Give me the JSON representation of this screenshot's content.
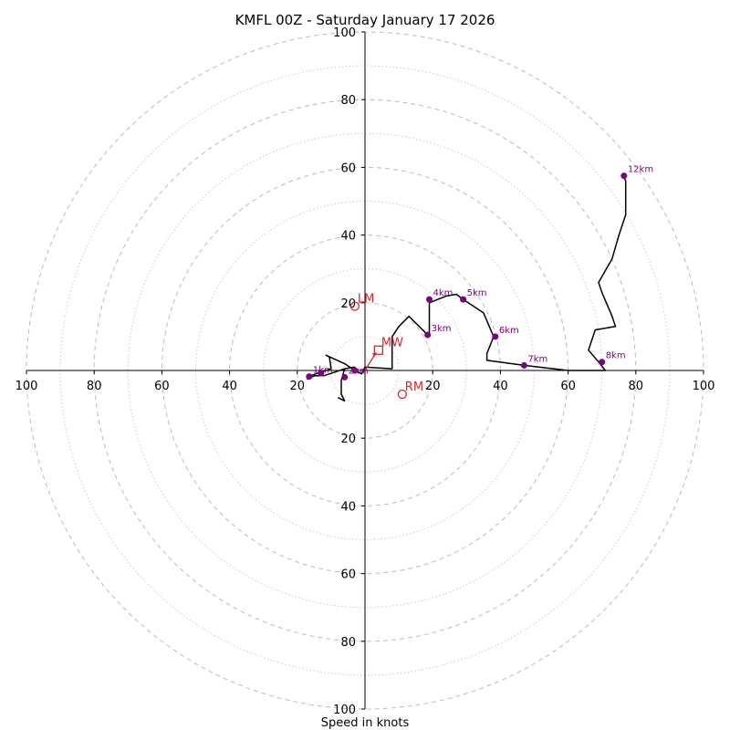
{
  "chart_data": {
    "type": "hodograph",
    "title": "KMFL 00Z - Saturday January 17 2026",
    "xlabel": "Speed in knots",
    "axis_range": [
      -100,
      100
    ],
    "ring_radii_major": [
      20,
      40,
      60,
      80,
      100
    ],
    "ring_radii_minor": [
      10,
      30,
      50,
      70,
      90
    ],
    "tick_values": [
      20,
      40,
      60,
      80,
      100
    ],
    "tick_labels": {
      "x_left": [
        "100",
        "80",
        "60",
        "40",
        "20"
      ],
      "x_right": [
        "20",
        "40",
        "60",
        "80",
        "100"
      ],
      "y_up": [
        "20",
        "40",
        "60",
        "80",
        "100"
      ],
      "y_down": [
        "20",
        "40",
        "60",
        "80",
        "100"
      ]
    },
    "hodograph_trace": [
      [
        -3,
        1
      ],
      [
        -6,
        0.5
      ],
      [
        -9,
        -0.5
      ],
      [
        -12,
        -1.5
      ],
      [
        -15,
        -1.6
      ],
      [
        -17,
        -2.5
      ],
      [
        -16,
        -1.5
      ],
      [
        -13,
        -0.5
      ],
      [
        -10,
        0.5
      ],
      [
        -10.5,
        4
      ],
      [
        -11.5,
        4.5
      ],
      [
        -6,
        2
      ],
      [
        -3,
        0
      ],
      [
        -1,
        -1
      ],
      [
        0,
        1
      ],
      [
        3,
        0.8
      ],
      [
        8,
        0.5
      ],
      [
        8,
        4
      ],
      [
        8,
        10
      ],
      [
        10,
        13
      ],
      [
        13,
        16
      ],
      [
        18,
        11
      ],
      [
        19,
        11
      ],
      [
        19,
        19
      ],
      [
        19,
        20
      ],
      [
        24,
        22
      ],
      [
        27,
        22.5
      ],
      [
        29,
        21
      ],
      [
        35,
        17
      ],
      [
        38,
        10
      ],
      [
        36,
        5
      ],
      [
        36,
        3
      ],
      [
        47,
        1.5
      ],
      [
        60,
        0
      ],
      [
        66,
        0
      ],
      [
        71,
        0
      ],
      [
        69,
        2.5
      ],
      [
        66,
        6
      ],
      [
        67,
        9
      ],
      [
        68,
        12
      ],
      [
        74,
        13
      ],
      [
        73,
        16
      ],
      [
        70,
        23
      ],
      [
        69,
        26
      ],
      [
        73,
        33
      ],
      [
        75,
        40
      ],
      [
        77,
        46
      ],
      [
        77,
        49
      ],
      [
        77,
        52
      ],
      [
        77,
        55
      ],
      [
        77,
        56
      ],
      [
        76,
        58
      ]
    ],
    "extra_branch": [
      [
        -6,
        0.5
      ],
      [
        -7,
        -3
      ],
      [
        -7,
        -7
      ],
      [
        -6,
        -9
      ],
      [
        -8,
        -8
      ]
    ],
    "height_markers": [
      {
        "label": "1km",
        "u": -16.5,
        "v": -1.8
      },
      {
        "label": "",
        "u": -13,
        "v": -0.8
      },
      {
        "label": "",
        "u": -3,
        "v": 0
      },
      {
        "label": "2km",
        "u": -6,
        "v": -2
      },
      {
        "label": "3km",
        "u": 18.5,
        "v": 10.5
      },
      {
        "label": "4km",
        "u": 19,
        "v": 21
      },
      {
        "label": "5km",
        "u": 29,
        "v": 21
      },
      {
        "label": "6km",
        "u": 38.5,
        "v": 10
      },
      {
        "label": "7km",
        "u": 47,
        "v": 1.5
      },
      {
        "label": "8km",
        "u": 70,
        "v": 2.5
      },
      {
        "label": "12km",
        "u": 76.5,
        "v": 57.5
      }
    ],
    "storm_motion": [
      {
        "label": "LM",
        "u": -3,
        "v": 19,
        "shape": "circle"
      },
      {
        "label": "RM",
        "u": 11,
        "v": -7,
        "shape": "circle"
      },
      {
        "label": "MW",
        "u": 4,
        "v": 6,
        "shape": "square"
      }
    ],
    "colors": {
      "trace": "#000000",
      "markers": "#800080",
      "storm_motion": "#d62728",
      "grid_major": "#bbbbbb",
      "grid_minor": "#cccccc"
    }
  }
}
